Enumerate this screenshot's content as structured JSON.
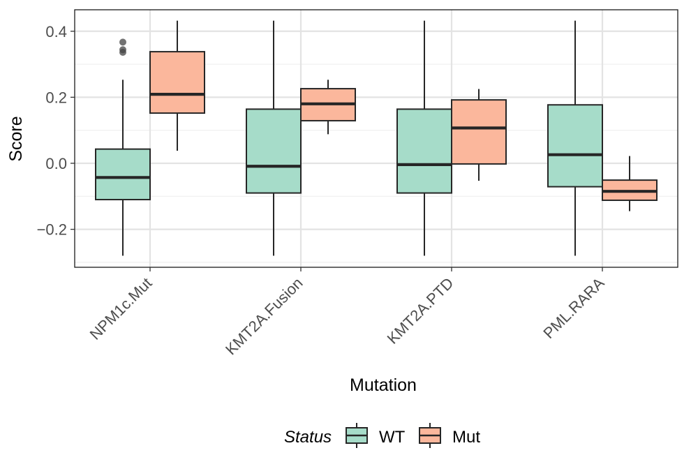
{
  "chart_data": {
    "type": "boxplot",
    "xlabel": "Mutation",
    "ylabel": "Score",
    "ylim": [
      -0.315,
      0.465
    ],
    "y_ticks": [
      -0.2,
      0.0,
      0.2,
      0.4
    ],
    "y_tick_labels": [
      "−0.2",
      "0.0",
      "0.2",
      "0.4"
    ],
    "categories": [
      "NPM1c.Mut",
      "KMT2A.Fusion",
      "KMT2A.PTD",
      "PML.RARA"
    ],
    "grid": true,
    "legend": {
      "title": "Status",
      "position": "bottom"
    },
    "series": [
      {
        "name": "WT",
        "color": "#a6dcc9",
        "boxes": [
          {
            "min": -0.28,
            "q1": -0.11,
            "median": -0.043,
            "q3": 0.043,
            "max": 0.253,
            "outliers": [
              0.336,
              0.344,
              0.367
            ]
          },
          {
            "min": -0.28,
            "q1": -0.09,
            "median": -0.009,
            "q3": 0.164,
            "max": 0.432,
            "outliers": []
          },
          {
            "min": -0.28,
            "q1": -0.09,
            "median": -0.004,
            "q3": 0.164,
            "max": 0.432,
            "outliers": []
          },
          {
            "min": -0.28,
            "q1": -0.071,
            "median": 0.026,
            "q3": 0.177,
            "max": 0.432,
            "outliers": []
          }
        ]
      },
      {
        "name": "Mut",
        "color": "#fbb79c",
        "boxes": [
          {
            "min": 0.038,
            "q1": 0.152,
            "median": 0.209,
            "q3": 0.338,
            "max": 0.432,
            "outliers": []
          },
          {
            "min": 0.088,
            "q1": 0.129,
            "median": 0.18,
            "q3": 0.226,
            "max": 0.253,
            "outliers": []
          },
          {
            "min": -0.053,
            "q1": -0.002,
            "median": 0.107,
            "q3": 0.192,
            "max": 0.225,
            "outliers": []
          },
          {
            "min": -0.145,
            "q1": -0.112,
            "median": -0.085,
            "q3": -0.051,
            "max": 0.022,
            "outliers": []
          }
        ]
      }
    ]
  }
}
